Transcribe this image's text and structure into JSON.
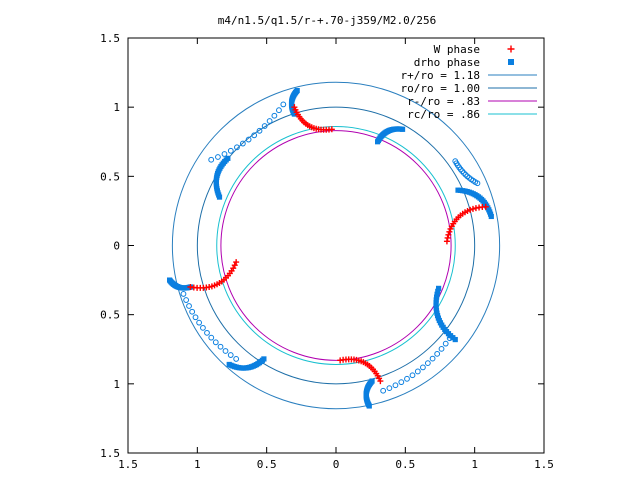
{
  "chart_data": {
    "type": "scatter",
    "title": "m4/n1.5/q1.5/r-+.70-j359/M2.0/256",
    "xlabel": "",
    "ylabel": "",
    "xlim": [
      -1.5,
      1.5
    ],
    "ylim": [
      -1.5,
      1.5
    ],
    "xticks": [
      "1.5",
      "1",
      "0.5",
      "0",
      "0.5",
      "1",
      "1.5"
    ],
    "yticks": [
      "1.5",
      "1",
      "0.5",
      "0",
      "0.5",
      "1",
      "1.5"
    ],
    "grid": false,
    "legend_position": "top-right",
    "legend": [
      {
        "label": "W phase",
        "marker": "plus",
        "color": "#ff0000"
      },
      {
        "label": "drho phase",
        "marker": "square",
        "color": "#0a7fe0"
      },
      {
        "label": "r+/ro = 1.18",
        "marker": "line",
        "color": "#2a7fbf"
      },
      {
        "label": "ro/ro = 1.00",
        "marker": "line",
        "color": "#1e6fa8"
      },
      {
        "label": "r-/ro = .83",
        "marker": "line",
        "color": "#b000b0"
      },
      {
        "label": "rc/ro = .86",
        "marker": "line",
        "color": "#19c0d0"
      }
    ],
    "circles": [
      {
        "name": "r+/ro = 1.18",
        "radius": 1.18
      },
      {
        "name": "ro/ro = 1.00",
        "radius": 1.0
      },
      {
        "name": "r-/ro = .83",
        "radius": 0.83
      },
      {
        "name": "rc/ro = .86",
        "radius": 0.86
      }
    ],
    "w_phase_arms": [
      {
        "from": [
          -0.72,
          -0.12
        ],
        "to": [
          -1.05,
          -0.3
        ]
      },
      {
        "from": [
          0.03,
          -0.83
        ],
        "to": [
          0.32,
          -0.98
        ]
      },
      {
        "from": [
          0.8,
          0.03
        ],
        "to": [
          1.08,
          0.28
        ]
      },
      {
        "from": [
          -0.03,
          0.84
        ],
        "to": [
          -0.3,
          1.0
        ]
      }
    ],
    "drho_phase_arms": [
      {
        "from": [
          -0.84,
          0.35
        ],
        "to": [
          -0.78,
          0.63
        ]
      },
      {
        "from": [
          -1.05,
          -0.3
        ],
        "to": [
          -1.2,
          -0.25
        ]
      },
      {
        "from": [
          -0.52,
          -0.82
        ],
        "to": [
          -0.77,
          -0.86
        ]
      },
      {
        "from": [
          0.24,
          -1.16
        ],
        "to": [
          0.26,
          -0.98
        ]
      },
      {
        "from": [
          0.86,
          -0.68
        ],
        "to": [
          0.74,
          -0.31
        ]
      },
      {
        "from": [
          0.88,
          0.4
        ],
        "to": [
          1.12,
          0.21
        ]
      },
      {
        "from": [
          0.3,
          0.75
        ],
        "to": [
          0.48,
          0.84
        ]
      },
      {
        "from": [
          -0.3,
          0.95
        ],
        "to": [
          -0.28,
          1.12
        ]
      }
    ],
    "drho_open_symbols": [
      {
        "from": [
          -0.9,
          0.62
        ],
        "to": [
          -0.38,
          1.02
        ]
      },
      {
        "from": [
          -1.1,
          -0.35
        ],
        "to": [
          -0.72,
          -0.82
        ]
      },
      {
        "from": [
          0.34,
          -1.05
        ],
        "to": [
          0.82,
          -0.67
        ]
      },
      {
        "from": [
          0.86,
          0.61
        ],
        "to": [
          1.02,
          0.45
        ]
      }
    ]
  }
}
